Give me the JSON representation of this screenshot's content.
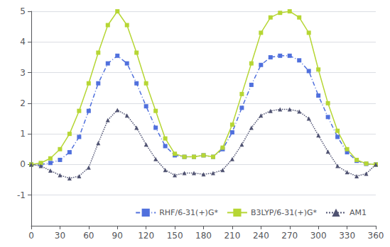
{
  "chart_data": {
    "type": "line",
    "x": [
      0,
      10,
      20,
      30,
      40,
      50,
      60,
      70,
      80,
      90,
      100,
      110,
      120,
      130,
      140,
      150,
      160,
      170,
      180,
      190,
      200,
      210,
      220,
      230,
      240,
      250,
      260,
      270,
      280,
      290,
      300,
      310,
      320,
      330,
      340,
      350,
      360
    ],
    "series": [
      {
        "name": "RHF/6-31(+)G*",
        "line_style": "dashdot",
        "marker": "square",
        "values": [
          0.0,
          0.0,
          0.05,
          0.15,
          0.4,
          0.9,
          1.75,
          2.65,
          3.3,
          3.55,
          3.3,
          2.65,
          1.9,
          1.2,
          0.6,
          0.3,
          0.25,
          0.25,
          0.3,
          0.25,
          0.5,
          1.05,
          1.85,
          2.6,
          3.25,
          3.5,
          3.55,
          3.55,
          3.4,
          3.05,
          2.25,
          1.55,
          0.9,
          0.4,
          0.12,
          0.02,
          0.0
        ]
      },
      {
        "name": "B3LYP/6-31(+)G*",
        "line_style": "solid",
        "marker": "square",
        "values": [
          0.0,
          0.05,
          0.2,
          0.5,
          1.0,
          1.75,
          2.65,
          3.65,
          4.55,
          5.0,
          4.55,
          3.65,
          2.65,
          1.75,
          0.85,
          0.35,
          0.25,
          0.25,
          0.3,
          0.25,
          0.55,
          1.3,
          2.3,
          3.3,
          4.3,
          4.8,
          4.95,
          5.0,
          4.8,
          4.3,
          3.1,
          2.0,
          1.1,
          0.5,
          0.15,
          0.03,
          0.0
        ]
      },
      {
        "name": "AM1",
        "line_style": "dotted",
        "marker": "triangle",
        "values": [
          0.0,
          -0.05,
          -0.2,
          -0.35,
          -0.45,
          -0.38,
          -0.1,
          0.7,
          1.45,
          1.78,
          1.6,
          1.2,
          0.65,
          0.18,
          -0.18,
          -0.35,
          -0.28,
          -0.28,
          -0.32,
          -0.28,
          -0.18,
          0.18,
          0.65,
          1.2,
          1.6,
          1.75,
          1.8,
          1.8,
          1.73,
          1.5,
          0.95,
          0.42,
          -0.05,
          -0.25,
          -0.38,
          -0.3,
          0.0
        ]
      }
    ],
    "xlim": [
      0,
      360
    ],
    "ylim": [
      -2,
      5
    ],
    "xticks": [
      0,
      30,
      60,
      90,
      120,
      150,
      180,
      210,
      240,
      270,
      300,
      330,
      360
    ],
    "yticks": [
      -1,
      0,
      1,
      2,
      3,
      4,
      5
    ],
    "grid": true,
    "legend": "lower right"
  }
}
